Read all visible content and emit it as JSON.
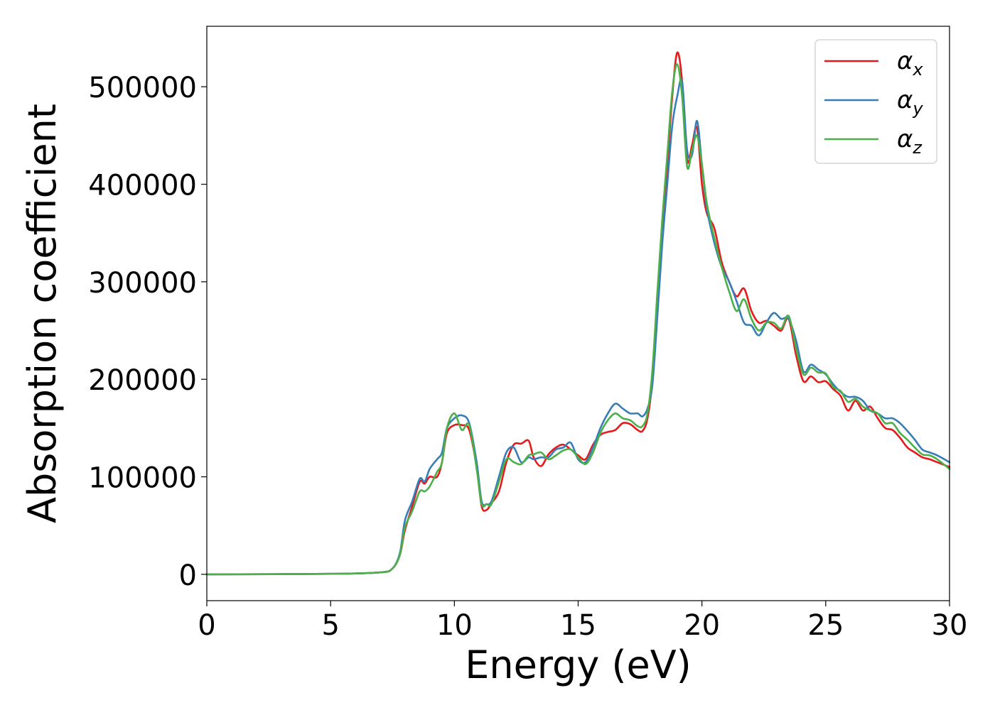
{
  "chart_data": {
    "type": "line",
    "title": "",
    "xlabel": "Energy (eV)",
    "ylabel": "Absorption coefficient",
    "xlim": [
      0,
      30
    ],
    "ylim": [
      -27000,
      562000
    ],
    "xticks": [
      0,
      5,
      10,
      15,
      20,
      25,
      30
    ],
    "yticks": [
      0,
      100000,
      200000,
      300000,
      400000,
      500000
    ],
    "grid": false,
    "legend_position": "top-right",
    "series": [
      {
        "name": "α_x",
        "legend_main": "α",
        "legend_sub": "x",
        "color": "#e41a1c",
        "x": [
          0,
          5,
          7,
          7.5,
          7.8,
          8.0,
          8.3,
          8.6,
          8.8,
          9.0,
          9.3,
          9.5,
          9.7,
          10.0,
          10.3,
          10.6,
          10.9,
          11.1,
          11.3,
          11.5,
          11.8,
          12.1,
          12.4,
          12.7,
          13.0,
          13.2,
          13.5,
          13.8,
          14.1,
          14.4,
          14.7,
          15.0,
          15.3,
          15.6,
          15.9,
          16.2,
          16.5,
          16.8,
          17.1,
          17.4,
          17.6,
          17.8,
          18.0,
          18.2,
          18.4,
          18.6,
          18.8,
          19.0,
          19.2,
          19.4,
          19.6,
          19.8,
          20.0,
          20.2,
          20.5,
          20.8,
          21.1,
          21.4,
          21.7,
          22.0,
          22.3,
          22.6,
          22.9,
          23.2,
          23.5,
          23.8,
          24.1,
          24.4,
          24.7,
          25.0,
          25.3,
          25.6,
          25.9,
          26.2,
          26.5,
          26.8,
          27.1,
          27.4,
          27.7,
          28.0,
          28.3,
          28.6,
          28.9,
          29.2,
          29.5,
          30.0
        ],
        "values": [
          0,
          500,
          2000,
          6000,
          20000,
          45000,
          70000,
          95000,
          93000,
          100000,
          100000,
          115000,
          145000,
          153000,
          153000,
          148000,
          110000,
          70000,
          66000,
          73000,
          85000,
          115000,
          133000,
          134000,
          137000,
          120000,
          111000,
          123000,
          130000,
          133000,
          128000,
          122000,
          118000,
          133000,
          143000,
          146000,
          148000,
          155000,
          154000,
          148000,
          147000,
          160000,
          200000,
          280000,
          360000,
          420000,
          490000,
          535000,
          505000,
          425000,
          440000,
          458000,
          400000,
          370000,
          355000,
          320000,
          300000,
          285000,
          293000,
          270000,
          258000,
          260000,
          255000,
          250000,
          262000,
          225000,
          198000,
          203000,
          197000,
          198000,
          190000,
          183000,
          168000,
          178000,
          168000,
          172000,
          160000,
          150000,
          148000,
          140000,
          130000,
          125000,
          120000,
          118000,
          115000,
          110000
        ]
      },
      {
        "name": "α_y",
        "legend_main": "α",
        "legend_sub": "y",
        "color": "#377eb8",
        "x": [
          0,
          5,
          7,
          7.5,
          7.8,
          8.0,
          8.3,
          8.6,
          8.8,
          9.0,
          9.3,
          9.5,
          9.7,
          10.0,
          10.3,
          10.6,
          10.9,
          11.1,
          11.3,
          11.5,
          11.8,
          12.1,
          12.4,
          12.7,
          13.0,
          13.2,
          13.5,
          13.8,
          14.1,
          14.4,
          14.7,
          15.0,
          15.3,
          15.6,
          15.9,
          16.2,
          16.5,
          16.8,
          17.1,
          17.4,
          17.6,
          17.8,
          18.0,
          18.2,
          18.4,
          18.6,
          18.8,
          19.0,
          19.2,
          19.4,
          19.6,
          19.8,
          20.0,
          20.2,
          20.5,
          20.8,
          21.1,
          21.4,
          21.7,
          22.0,
          22.3,
          22.6,
          22.9,
          23.2,
          23.5,
          23.8,
          24.1,
          24.4,
          24.7,
          25.0,
          25.3,
          25.6,
          25.9,
          26.2,
          26.5,
          26.8,
          27.1,
          27.4,
          27.7,
          28.0,
          28.3,
          28.6,
          28.9,
          29.2,
          29.5,
          30.0
        ],
        "values": [
          0,
          500,
          2000,
          6000,
          22000,
          55000,
          75000,
          98000,
          95000,
          108000,
          118000,
          125000,
          150000,
          160000,
          163000,
          155000,
          115000,
          75000,
          72000,
          75000,
          100000,
          125000,
          130000,
          115000,
          120000,
          118000,
          120000,
          120000,
          128000,
          130000,
          135000,
          118000,
          115000,
          130000,
          150000,
          165000,
          175000,
          170000,
          165000,
          165000,
          162000,
          170000,
          195000,
          265000,
          340000,
          400000,
          460000,
          490000,
          505000,
          435000,
          430000,
          465000,
          420000,
          375000,
          340000,
          315000,
          300000,
          280000,
          258000,
          255000,
          245000,
          258000,
          268000,
          262000,
          262000,
          240000,
          208000,
          215000,
          210000,
          205000,
          195000,
          187000,
          182000,
          182000,
          178000,
          168000,
          165000,
          160000,
          160000,
          155000,
          147000,
          138000,
          128000,
          125000,
          122000,
          115000
        ]
      },
      {
        "name": "α_z",
        "legend_main": "α",
        "legend_sub": "z",
        "color": "#4daf4a",
        "x": [
          0,
          5,
          7,
          7.5,
          7.8,
          8.0,
          8.3,
          8.6,
          8.8,
          9.0,
          9.3,
          9.5,
          9.7,
          10.0,
          10.3,
          10.6,
          10.9,
          11.1,
          11.3,
          11.5,
          11.8,
          12.1,
          12.4,
          12.7,
          13.0,
          13.2,
          13.5,
          13.8,
          14.1,
          14.4,
          14.7,
          15.0,
          15.3,
          15.6,
          15.9,
          16.2,
          16.5,
          16.8,
          17.1,
          17.4,
          17.6,
          17.8,
          18.0,
          18.2,
          18.4,
          18.6,
          18.8,
          19.0,
          19.2,
          19.4,
          19.6,
          19.8,
          20.0,
          20.2,
          20.5,
          20.8,
          21.1,
          21.4,
          21.7,
          22.0,
          22.3,
          22.6,
          22.9,
          23.2,
          23.5,
          23.8,
          24.1,
          24.4,
          24.7,
          25.0,
          25.3,
          25.6,
          25.9,
          26.2,
          26.5,
          26.8,
          27.1,
          27.4,
          27.7,
          28.0,
          28.3,
          28.6,
          28.9,
          29.2,
          29.5,
          30.0
        ],
        "values": [
          0,
          500,
          2000,
          6000,
          20000,
          48000,
          65000,
          85000,
          85000,
          90000,
          105000,
          115000,
          150000,
          165000,
          148000,
          153000,
          108000,
          72000,
          72000,
          72000,
          95000,
          118000,
          115000,
          113000,
          122000,
          123000,
          125000,
          118000,
          122000,
          127000,
          128000,
          120000,
          113000,
          125000,
          145000,
          158000,
          165000,
          160000,
          158000,
          152000,
          152000,
          165000,
          210000,
          290000,
          365000,
          430000,
          495000,
          523000,
          490000,
          418000,
          435000,
          450000,
          420000,
          380000,
          345000,
          315000,
          290000,
          270000,
          282000,
          262000,
          250000,
          258000,
          258000,
          252000,
          265000,
          232000,
          205000,
          212000,
          207000,
          206000,
          192000,
          188000,
          177000,
          180000,
          172000,
          168000,
          165000,
          155000,
          155000,
          145000,
          138000,
          130000,
          123000,
          122000,
          118000,
          108000
        ]
      }
    ]
  }
}
